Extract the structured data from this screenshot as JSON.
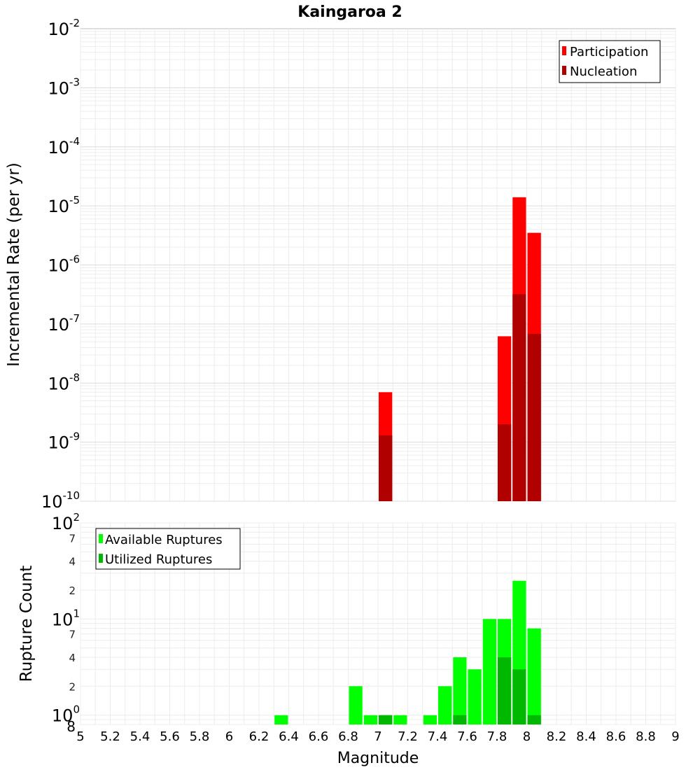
{
  "chart_data": [
    {
      "type": "bar",
      "title": "Kaingaroa 2",
      "xlabel": "Magnitude",
      "ylabel": "Incremental Rate (per yr)",
      "xlim": [
        5,
        9
      ],
      "ylim": [
        1e-10,
        0.01
      ],
      "y_scale": "log",
      "bin_width": 0.1,
      "grid": true,
      "legend_placement": "top-right",
      "y_ticks": [
        {
          "base": "10",
          "exp": "-10",
          "value": 1e-10
        },
        {
          "base": "10",
          "exp": "-9",
          "value": 1e-09
        },
        {
          "base": "10",
          "exp": "-8",
          "value": 1e-08
        },
        {
          "base": "10",
          "exp": "-7",
          "value": 1e-07
        },
        {
          "base": "10",
          "exp": "-6",
          "value": 1e-06
        },
        {
          "base": "10",
          "exp": "-5",
          "value": 1e-05
        },
        {
          "base": "10",
          "exp": "-4",
          "value": 0.0001
        },
        {
          "base": "10",
          "exp": "-3",
          "value": 0.001
        },
        {
          "base": "10",
          "exp": "-2",
          "value": 0.01
        }
      ],
      "series": [
        {
          "name": "Participation",
          "color": "#ff0000",
          "x": [
            7.05,
            7.85,
            7.95,
            8.05
          ],
          "values": [
            7e-09,
            6.2e-08,
            1.4e-05,
            3.5e-06
          ]
        },
        {
          "name": "Nucleation",
          "color": "#b00000",
          "x": [
            7.05,
            7.85,
            7.95,
            8.05
          ],
          "values": [
            1.3e-09,
            2e-09,
            3.2e-07,
            6.8e-08
          ]
        }
      ]
    },
    {
      "type": "bar",
      "xlabel": "Magnitude",
      "ylabel": "Rupture Count",
      "xlim": [
        5,
        9
      ],
      "ylim": [
        0.8,
        100
      ],
      "y_scale": "log",
      "bin_width": 0.1,
      "grid": true,
      "legend_placement": "top-left",
      "x_ticks": [
        "5",
        "5.2",
        "5.4",
        "5.6",
        "5.8",
        "6",
        "6.2",
        "6.4",
        "6.6",
        "6.8",
        "7",
        "7.2",
        "7.4",
        "7.6",
        "7.8",
        "8",
        "8.2",
        "8.4",
        "8.6",
        "8.8",
        "9"
      ],
      "y_ticks": [
        {
          "base": "10",
          "exp": "0",
          "value": 1
        },
        {
          "base": "10",
          "exp": "1",
          "value": 10
        },
        {
          "base": "10",
          "exp": "2",
          "value": 100
        }
      ],
      "y_minor_ticks": [
        {
          "label": "8",
          "value": 0.8
        },
        {
          "label": "2",
          "value": 2
        },
        {
          "label": "4",
          "value": 4
        },
        {
          "label": "7",
          "value": 7
        },
        {
          "label": "2",
          "value": 20
        },
        {
          "label": "4",
          "value": 40
        },
        {
          "label": "7",
          "value": 70
        }
      ],
      "series": [
        {
          "name": "Available Ruptures",
          "color": "#00ff00",
          "x": [
            6.35,
            6.85,
            6.95,
            7.05,
            7.15,
            7.35,
            7.45,
            7.55,
            7.65,
            7.75,
            7.85,
            7.95,
            8.05
          ],
          "values": [
            1,
            2,
            1,
            1,
            1,
            1,
            2,
            4,
            3,
            10,
            10,
            25,
            8
          ]
        },
        {
          "name": "Utilized Ruptures",
          "color": "#00b800",
          "x": [
            7.05,
            7.55,
            7.85,
            7.95,
            8.05
          ],
          "values": [
            1,
            1,
            4,
            3,
            1
          ]
        }
      ]
    }
  ]
}
